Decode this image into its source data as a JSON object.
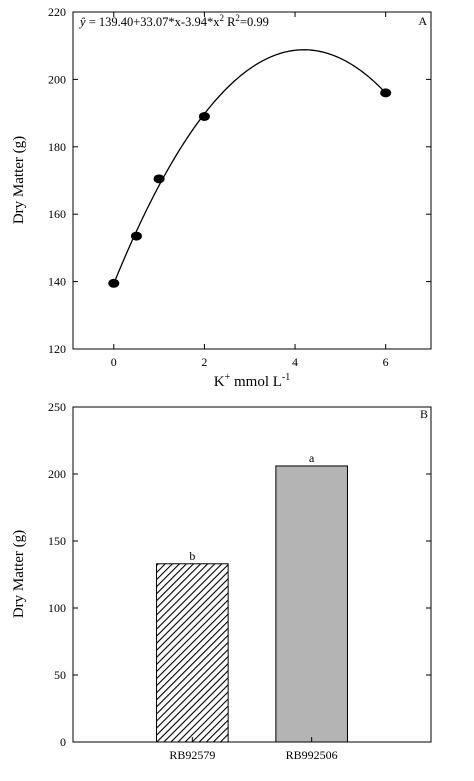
{
  "chart_data": [
    {
      "type": "scatter",
      "panel_label": "A",
      "equation": "ŷ = 139.40+33.07*x-3.94*x² R²=0.99",
      "equation_parts": {
        "yhat": "ŷ",
        "body": " = 139.40+33.07*x-3.94*x",
        "r": " R",
        "r_value": "=0.99"
      },
      "xlabel": "K⁺ mmol L⁻¹",
      "xlabel_parts": {
        "k": "K",
        "plus": "+",
        "mid": " mmol L",
        "minus": "-1"
      },
      "ylabel": "Dry Matter (g)",
      "xlim": [
        -0.9,
        7
      ],
      "ylim": [
        120,
        220
      ],
      "x_ticks": [
        0,
        2,
        4,
        6
      ],
      "y_ticks": [
        120,
        140,
        160,
        180,
        200,
        220
      ],
      "points": [
        {
          "x": 0,
          "y": 139.5
        },
        {
          "x": 0.5,
          "y": 153.5
        },
        {
          "x": 1,
          "y": 170.5
        },
        {
          "x": 2,
          "y": 189
        },
        {
          "x": 6,
          "y": 196
        }
      ],
      "fit": {
        "a": 139.4,
        "b": 33.07,
        "c": -3.94,
        "x_range": [
          0,
          6
        ]
      }
    },
    {
      "type": "bar",
      "panel_label": "B",
      "ylabel": "Dry Matter (g)",
      "ylim": [
        0,
        250
      ],
      "y_ticks": [
        0,
        50,
        100,
        150,
        200,
        250
      ],
      "categories": [
        "RB92579",
        "RB992506"
      ],
      "values": [
        133,
        206
      ],
      "letters": [
        "b",
        "a"
      ],
      "fills": [
        "hatched",
        "#b4b4b4"
      ]
    }
  ]
}
